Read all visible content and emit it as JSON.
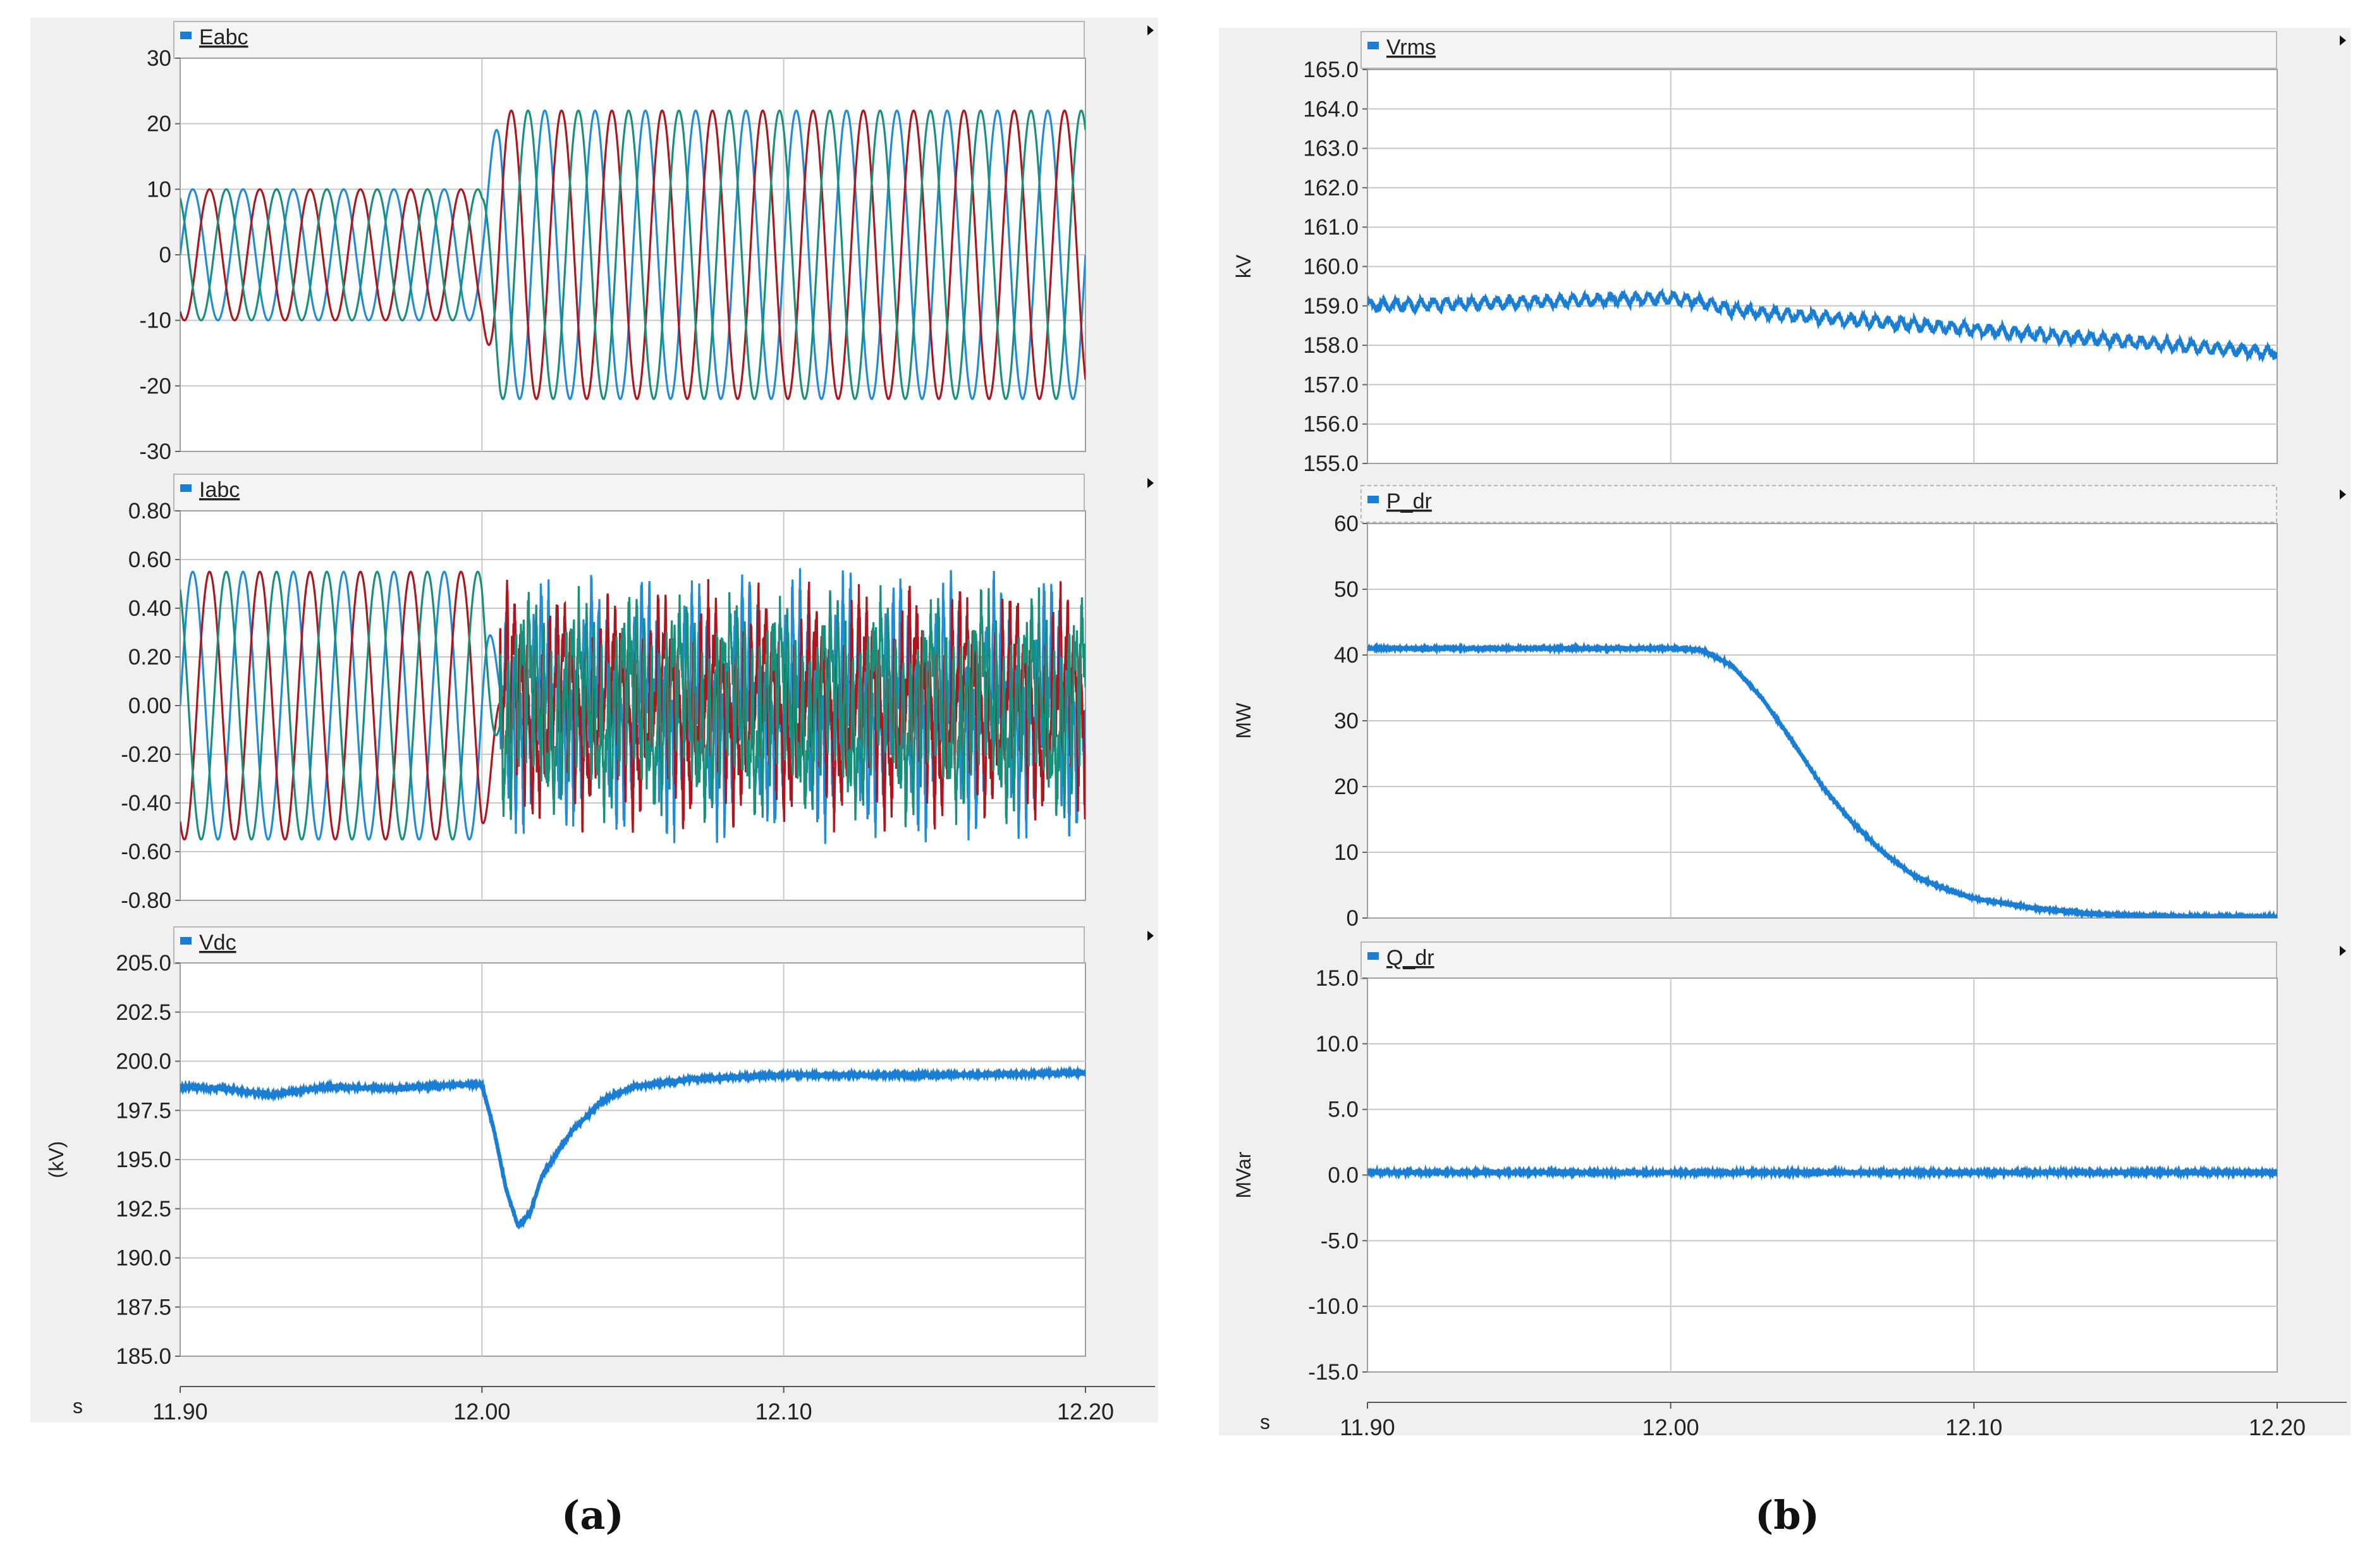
{
  "figure_labels": {
    "a": "(a)",
    "b": "(b)"
  },
  "colors": {
    "phase_a": "#1e8cd8",
    "phase_b": "#b0141c",
    "phase_c": "#17907a",
    "trace": "#1a7fd4",
    "grid": "#c8c8c8",
    "panel_bg": "#f0f0f0"
  },
  "chart_data": [
    {
      "type": "line",
      "panel": "a",
      "title": "Eabc",
      "ylabel": "",
      "ylim": [
        -30,
        30
      ],
      "yticks": [
        "30",
        "20",
        "10",
        "0",
        "-10",
        "-20",
        "-30"
      ],
      "xlim": [
        11.9,
        12.2
      ],
      "xlabel": "",
      "show_x_axis": false,
      "series": [
        {
          "phases": 3,
          "frequency_hz": 60,
          "amplitude_before": 10,
          "amplitude_after": 22,
          "change_time": 12.0,
          "color": "#1e8cd8"
        }
      ]
    },
    {
      "type": "line",
      "panel": "a",
      "title": "Iabc",
      "ylabel": "",
      "ylim": [
        -0.8,
        0.8
      ],
      "yticks": [
        "0.80",
        "0.60",
        "0.40",
        "0.20",
        "0.00",
        "-0.20",
        "-0.40",
        "-0.60",
        "-0.80"
      ],
      "xlim": [
        11.9,
        12.2
      ],
      "xlabel": "",
      "show_x_axis": false,
      "series": [
        {
          "phases": 3,
          "frequency_hz": 60,
          "amplitude_before": 0.55,
          "amplitude_after": 0.42,
          "change_time": 12.0,
          "note": "distorted"
        }
      ]
    },
    {
      "type": "line",
      "panel": "a",
      "title": "Vdc",
      "ylabel": "(kV)",
      "ylim": [
        185.0,
        205.0
      ],
      "yticks": [
        "205.0",
        "202.5",
        "200.0",
        "197.5",
        "195.0",
        "192.5",
        "190.0",
        "187.5",
        "185.0"
      ],
      "xlim": [
        11.9,
        12.2
      ],
      "xlabel": "s",
      "show_x_axis": true,
      "xticks": [
        "11.90",
        "12.00",
        "12.10",
        "12.20"
      ],
      "series": [
        {
          "x": [
            11.9,
            11.915,
            11.93,
            11.95,
            11.97,
            11.99,
            12.0,
            12.004,
            12.008,
            12.012,
            12.016,
            12.02,
            12.03,
            12.04,
            12.05,
            12.07,
            12.1,
            12.15,
            12.2
          ],
          "y": [
            198.7,
            198.6,
            198.3,
            198.7,
            198.6,
            198.8,
            198.8,
            196.5,
            193.5,
            191.6,
            192.3,
            194.2,
            196.5,
            198.0,
            198.7,
            199.1,
            199.3,
            199.3,
            199.4
          ]
        }
      ]
    },
    {
      "type": "line",
      "panel": "b",
      "title": "Vrms",
      "ylabel": "kV",
      "ylim": [
        155.0,
        165.0
      ],
      "yticks": [
        "165.0",
        "164.0",
        "163.0",
        "162.0",
        "161.0",
        "160.0",
        "159.0",
        "158.0",
        "157.0",
        "156.0",
        "155.0"
      ],
      "xlim": [
        11.9,
        12.2
      ],
      "xlabel": "",
      "show_x_axis": false,
      "series": [
        {
          "x": [
            11.9,
            11.95,
            12.0,
            12.01,
            12.02,
            12.05,
            12.1,
            12.15,
            12.2
          ],
          "y": [
            159.0,
            159.1,
            159.2,
            159.1,
            158.9,
            158.7,
            158.4,
            158.1,
            157.8
          ]
        }
      ]
    },
    {
      "type": "line",
      "panel": "b",
      "title": "P_dr",
      "ylabel": "MW",
      "ylim": [
        0,
        60
      ],
      "yticks": [
        "60",
        "50",
        "40",
        "30",
        "20",
        "10",
        "0"
      ],
      "xlim": [
        11.9,
        12.2
      ],
      "xlabel": "",
      "show_x_axis": false,
      "series": [
        {
          "x": [
            11.9,
            11.95,
            12.0,
            12.01,
            12.02,
            12.03,
            12.04,
            12.05,
            12.06,
            12.07,
            12.08,
            12.09,
            12.1,
            12.12,
            12.14,
            12.16,
            12.18,
            12.2
          ],
          "y": [
            41.0,
            41.0,
            41.0,
            40.8,
            38.5,
            33.5,
            27.0,
            20.0,
            14.5,
            10.0,
            6.5,
            4.5,
            3.0,
            1.5,
            0.6,
            0.3,
            0.2,
            0.2
          ]
        }
      ]
    },
    {
      "type": "line",
      "panel": "b",
      "title": "Q_dr",
      "ylabel": "MVar",
      "ylim": [
        -15.0,
        15.0
      ],
      "yticks": [
        "15.0",
        "10.0",
        "5.0",
        "0.0",
        "-5.0",
        "-10.0",
        "-15.0"
      ],
      "xlim": [
        11.9,
        12.2
      ],
      "xlabel": "s",
      "show_x_axis": true,
      "xticks": [
        "11.90",
        "12.00",
        "12.10",
        "12.20"
      ],
      "series": [
        {
          "x": [
            11.9,
            12.05,
            12.2
          ],
          "y": [
            0.2,
            0.2,
            0.2
          ]
        }
      ]
    }
  ]
}
